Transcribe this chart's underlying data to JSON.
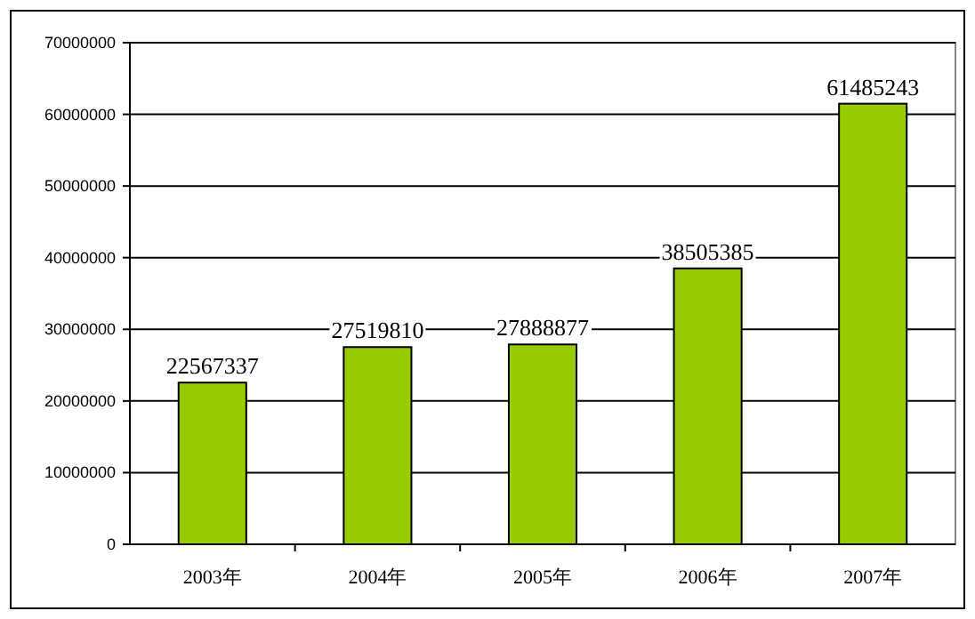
{
  "chart_data": {
    "type": "bar",
    "categories": [
      "2003年",
      "2004年",
      "2005年",
      "2006年",
      "2007年"
    ],
    "values": [
      22567337,
      27519810,
      27888877,
      38505385,
      61485243
    ],
    "color": "#99cc00",
    "ylim": [
      0,
      70000000
    ],
    "yticks": [
      0,
      10000000,
      20000000,
      30000000,
      40000000,
      50000000,
      60000000,
      70000000
    ],
    "grid": "y",
    "data_labels": true
  }
}
